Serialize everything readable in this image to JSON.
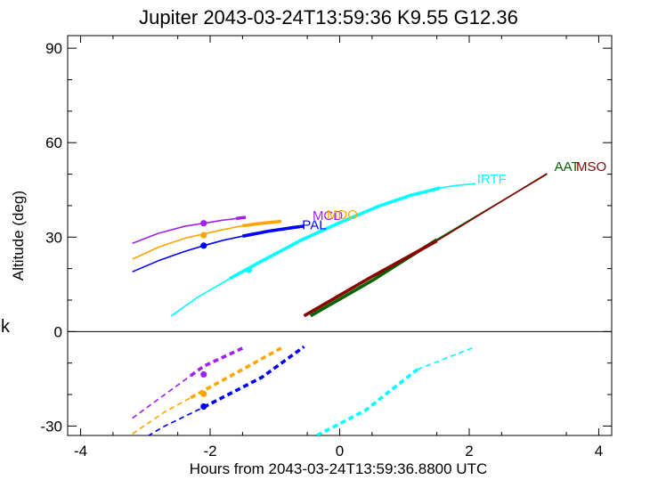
{
  "chart_data": {
    "type": "line",
    "title": "Jupiter 2043-03-24T13:59:36  K9.55  G12.36",
    "xlabel": "Hours from 2043-03-24T13:59:36.8800 UTC",
    "ylabel": "Altitude (deg)",
    "side_label": "k",
    "xlim": [
      -4.2,
      4.2
    ],
    "ylim": [
      -33,
      94
    ],
    "xticks": [
      -4,
      -2,
      0,
      2,
      4
    ],
    "yticks": [
      -30,
      0,
      30,
      60,
      90
    ],
    "zero_line": 0,
    "colors": {
      "MCD": "#a020f0",
      "MDO": "#ffa500",
      "PAL": "#0000ff",
      "IRTF": "#00ffff",
      "AAT": "#006400",
      "MSO": "#8b0000"
    },
    "series": [
      {
        "name": "MCD",
        "color": "#a020f0",
        "label": {
          "text": "MCD",
          "at": [
            -0.42,
            35.5
          ]
        },
        "thin": [
          [
            -3.2,
            28.0
          ],
          [
            -2.8,
            31.2
          ],
          [
            -2.4,
            33.4
          ],
          [
            -2.1,
            34.4
          ],
          [
            -1.8,
            35.4
          ],
          [
            -1.6,
            35.9
          ]
        ],
        "thick": [
          [
            -1.6,
            35.9
          ],
          [
            -1.45,
            36.3
          ]
        ],
        "dot": [
          -2.1,
          34.4
        ],
        "below_thin": [
          [
            -3.2,
            -27.5
          ],
          [
            -2.7,
            -20.0
          ],
          [
            -2.3,
            -14.0
          ]
        ],
        "below_thick": [
          [
            -2.3,
            -14.0
          ],
          [
            -2.1,
            -11.0
          ],
          [
            -1.45,
            -4.8
          ]
        ],
        "below_dot": [
          -2.1,
          -13.6
        ]
      },
      {
        "name": "MDO",
        "color": "#ffa500",
        "label": {
          "text": "MDO",
          "at": [
            -0.2,
            35.8
          ]
        },
        "thin": [
          [
            -3.2,
            23.0
          ],
          [
            -2.8,
            26.8
          ],
          [
            -2.4,
            29.6
          ],
          [
            -2.1,
            31.0
          ],
          [
            -1.8,
            32.4
          ],
          [
            -1.5,
            33.6
          ]
        ],
        "thick": [
          [
            -1.5,
            33.6
          ],
          [
            -1.2,
            34.4
          ],
          [
            -0.9,
            35.0
          ]
        ],
        "dot": [
          -2.1,
          30.6
        ],
        "below_thin": [
          [
            -3.2,
            -32.5
          ],
          [
            -2.7,
            -25.5
          ],
          [
            -2.3,
            -21.0
          ]
        ],
        "below_thick": [
          [
            -2.3,
            -21.0
          ],
          [
            -1.5,
            -12.0
          ],
          [
            -0.9,
            -5.2
          ]
        ],
        "below_dot": [
          -2.1,
          -19.8
        ]
      },
      {
        "name": "PAL",
        "color": "#0000ff",
        "label": {
          "text": "PAL",
          "at": [
            -0.58,
            32.5
          ]
        },
        "thin": [
          [
            -3.2,
            19.0
          ],
          [
            -2.8,
            22.5
          ],
          [
            -2.4,
            25.4
          ],
          [
            -2.1,
            27.3
          ],
          [
            -1.8,
            29.0
          ],
          [
            -1.5,
            30.3
          ]
        ],
        "thick": [
          [
            -1.5,
            30.3
          ],
          [
            -1.1,
            31.9
          ],
          [
            -0.7,
            33.1
          ],
          [
            -0.55,
            33.5
          ]
        ],
        "dot": [
          -2.1,
          27.3
        ],
        "below_thin": [
          [
            -3.2,
            -36.0
          ],
          [
            -2.7,
            -30.0
          ],
          [
            -2.1,
            -24.0
          ]
        ],
        "below_thick": [
          [
            -2.1,
            -24.0
          ],
          [
            -1.2,
            -14.5
          ],
          [
            -0.55,
            -4.8
          ]
        ],
        "below_dot": [
          -2.1,
          -23.8
        ]
      },
      {
        "name": "IRTF",
        "color": "#00ffff",
        "label": {
          "text": "IRTF",
          "at": [
            2.12,
            47.0
          ]
        },
        "thin": [
          [
            -2.6,
            5.0
          ],
          [
            -2.2,
            10.8
          ],
          [
            -1.7,
            16.8
          ]
        ],
        "thick": [
          [
            -1.7,
            16.8
          ],
          [
            -1.2,
            22.4
          ],
          [
            -0.6,
            29.0
          ],
          [
            0.0,
            34.6
          ],
          [
            0.6,
            39.8
          ],
          [
            1.1,
            43.3
          ],
          [
            1.55,
            45.6
          ]
        ],
        "thin2": [
          [
            1.55,
            45.6
          ],
          [
            1.8,
            46.4
          ],
          [
            2.1,
            47.0
          ]
        ],
        "dot": [
          -1.4,
          19.6
        ],
        "below_thin": [
          [
            1.2,
            -12.0
          ],
          [
            2.1,
            -4.8
          ]
        ],
        "below_thick": [
          [
            -0.35,
            -33.0
          ],
          [
            0.4,
            -25.0
          ],
          [
            1.2,
            -12.0
          ]
        ],
        "below_dot": null
      },
      {
        "name": "AAT",
        "color": "#006400",
        "label": {
          "text": "AAT",
          "at": [
            3.7,
            51.0
          ]
        },
        "thin": [
          [
            1.5,
            29.2
          ],
          [
            3.2,
            50.0
          ]
        ],
        "thick": [
          [
            -0.45,
            5.0
          ],
          [
            0.5,
            16.2
          ],
          [
            1.5,
            29.2
          ]
        ],
        "dot": null,
        "below_thin": [],
        "below_thick": [],
        "below_dot": null
      },
      {
        "name": "MSO",
        "color": "#8b0000",
        "label": {
          "text": "MSO",
          "at": [
            4.12,
            51.0
          ]
        },
        "thin": [
          [
            1.5,
            28.8
          ],
          [
            3.2,
            50.2
          ]
        ],
        "thick": [
          [
            -0.55,
            5.0
          ],
          [
            0.5,
            17.5
          ],
          [
            1.5,
            28.8
          ]
        ],
        "dot": null,
        "below_thin": [],
        "below_thick": [],
        "below_dot": null
      }
    ]
  }
}
